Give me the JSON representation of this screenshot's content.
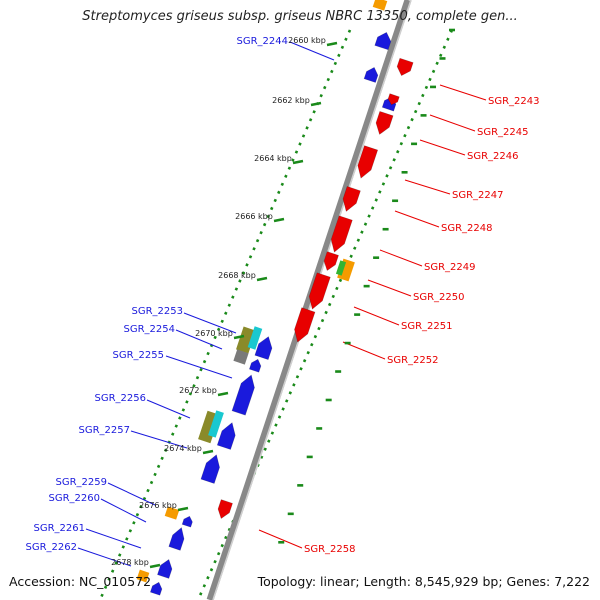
{
  "title": "Streptomyces griseus subsp. griseus NBRC 13350, complete gen...",
  "footer": {
    "accession": "Accession: NC_010572",
    "summary": "Topology: linear; Length: 8,545,929 bp; Genes: 7,222"
  },
  "colors": {
    "plus_strand": "#1a1adc",
    "minus_strand": "#e80000",
    "backbone": "#888888",
    "ticks": "#1a8a1a",
    "orange_feature": "#f59b00",
    "gray_feature": "#7a7a7a",
    "olive_feature": "#8a8a2a",
    "cyan_feature": "#19c8d0"
  },
  "scale_ticks": [
    "2660 kbp",
    "2662 kbp",
    "2664 kbp",
    "2666 kbp",
    "2668 kbp",
    "2670 kbp",
    "2672 kbp",
    "2674 kbp",
    "2676 kbp",
    "2678 kbp"
  ],
  "genes_plus": [
    "SGR_2244",
    "SGR_2253",
    "SGR_2254",
    "SGR_2255",
    "SGR_2256",
    "SGR_2257",
    "SGR_2259",
    "SGR_2260",
    "SGR_2261",
    "SGR_2262"
  ],
  "genes_minus": [
    "SGR_2243",
    "SGR_2245",
    "SGR_2246",
    "SGR_2247",
    "SGR_2248",
    "SGR_2249",
    "SGR_2250",
    "SGR_2251",
    "SGR_2252",
    "SGR_2258"
  ]
}
